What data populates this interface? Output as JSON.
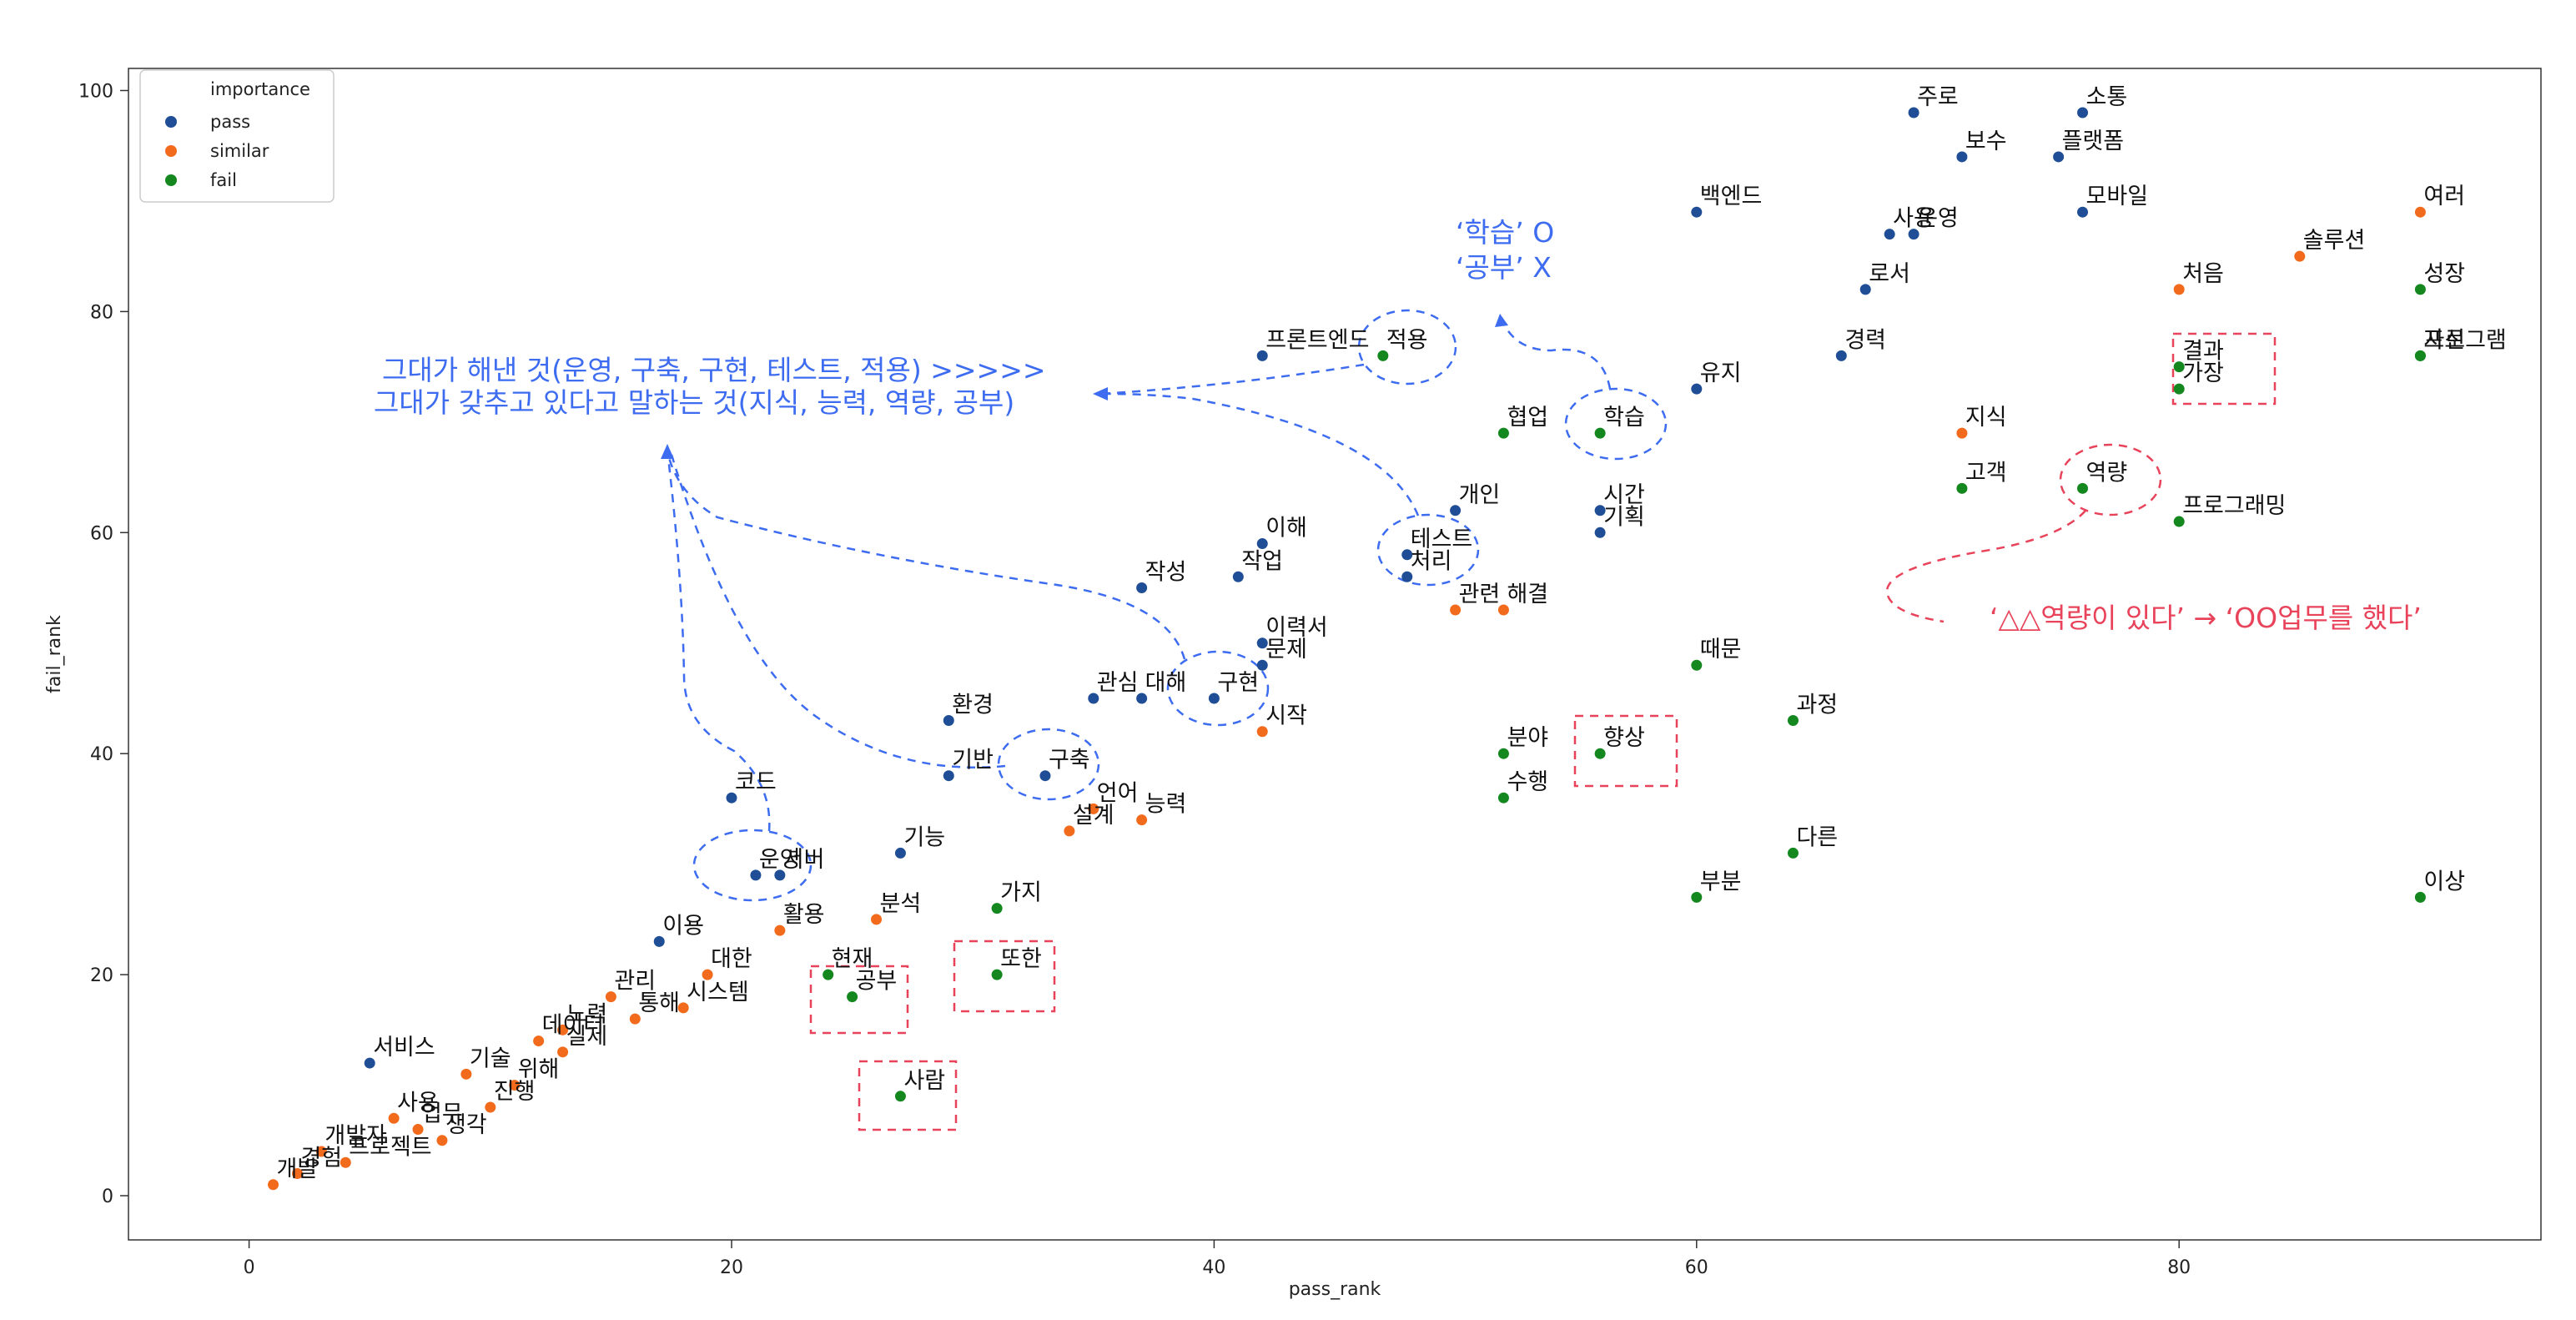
{
  "chart_data": {
    "type": "scatter",
    "xlabel": "pass_rank",
    "ylabel": "fail_rank",
    "xlim": [
      -5,
      95
    ],
    "ylim": [
      -4,
      102
    ],
    "x_ticks": [
      0,
      20,
      40,
      60,
      80
    ],
    "y_ticks": [
      0,
      20,
      40,
      60,
      80,
      100
    ],
    "legend": {
      "title": "importance",
      "placement": "top-left",
      "entries": [
        {
          "name": "pass",
          "color": "#1f4e96"
        },
        {
          "name": "similar",
          "color": "#f26b1d"
        },
        {
          "name": "fail",
          "color": "#14871f"
        }
      ]
    },
    "series": [
      {
        "name": "pass",
        "color": "#1f4e96",
        "points": [
          {
            "label": "주로",
            "x": 69,
            "y": 98
          },
          {
            "label": "소통",
            "x": 76,
            "y": 98
          },
          {
            "label": "보수",
            "x": 71,
            "y": 94
          },
          {
            "label": "플랫폼",
            "x": 75,
            "y": 94
          },
          {
            "label": "백엔드",
            "x": 60,
            "y": 89
          },
          {
            "label": "모바일",
            "x": 76,
            "y": 89
          },
          {
            "label": "사용",
            "x": 68,
            "y": 87
          },
          {
            "label": "운영",
            "x": 69,
            "y": 87
          },
          {
            "label": "로서",
            "x": 67,
            "y": 82
          },
          {
            "label": "경력",
            "x": 66,
            "y": 76
          },
          {
            "label": "유지",
            "x": 60,
            "y": 73
          },
          {
            "label": "프론트엔드",
            "x": 42,
            "y": 76
          },
          {
            "label": "개인",
            "x": 50,
            "y": 62
          },
          {
            "label": "시간",
            "x": 56,
            "y": 62
          },
          {
            "label": "기획",
            "x": 56,
            "y": 60
          },
          {
            "label": "이해",
            "x": 42,
            "y": 59
          },
          {
            "label": "작업",
            "x": 41,
            "y": 56
          },
          {
            "label": "작성",
            "x": 37,
            "y": 55
          },
          {
            "label": "처리",
            "x": 48,
            "y": 56
          },
          {
            "label": "테스트",
            "x": 48,
            "y": 58
          },
          {
            "label": "이력서",
            "x": 42,
            "y": 50
          },
          {
            "label": "문제",
            "x": 42,
            "y": 48
          },
          {
            "label": "관심",
            "x": 35,
            "y": 45
          },
          {
            "label": "대해",
            "x": 37,
            "y": 45
          },
          {
            "label": "구현",
            "x": 40,
            "y": 45
          },
          {
            "label": "환경",
            "x": 29,
            "y": 43
          },
          {
            "label": "기반",
            "x": 29,
            "y": 38
          },
          {
            "label": "구축",
            "x": 33,
            "y": 38
          },
          {
            "label": "코드",
            "x": 20,
            "y": 36
          },
          {
            "label": "기능",
            "x": 27,
            "y": 31
          },
          {
            "label": "운영",
            "x": 21,
            "y": 29
          },
          {
            "label": "서버",
            "x": 22,
            "y": 29
          },
          {
            "label": "이용",
            "x": 17,
            "y": 23
          },
          {
            "label": "서비스",
            "x": 5,
            "y": 12
          }
        ]
      },
      {
        "name": "similar",
        "color": "#f26b1d",
        "points": [
          {
            "label": "여러",
            "x": 90,
            "y": 89
          },
          {
            "label": "솔루션",
            "x": 85,
            "y": 85
          },
          {
            "label": "처음",
            "x": 80,
            "y": 82
          },
          {
            "label": "지식",
            "x": 71,
            "y": 69
          },
          {
            "label": "관련",
            "x": 50,
            "y": 53
          },
          {
            "label": "해결",
            "x": 52,
            "y": 53
          },
          {
            "label": "시작",
            "x": 42,
            "y": 42
          },
          {
            "label": "언어",
            "x": 35,
            "y": 35
          },
          {
            "label": "능력",
            "x": 37,
            "y": 34
          },
          {
            "label": "설계",
            "x": 34,
            "y": 33
          },
          {
            "label": "분석",
            "x": 26,
            "y": 25
          },
          {
            "label": "활용",
            "x": 22,
            "y": 24
          },
          {
            "label": "대한",
            "x": 19,
            "y": 20
          },
          {
            "label": "관리",
            "x": 15,
            "y": 18
          },
          {
            "label": "시스템",
            "x": 18,
            "y": 17
          },
          {
            "label": "통해",
            "x": 16,
            "y": 16
          },
          {
            "label": "노력",
            "x": 13,
            "y": 15
          },
          {
            "label": "데이터",
            "x": 12,
            "y": 14
          },
          {
            "label": "실제",
            "x": 13,
            "y": 13
          },
          {
            "label": "기술",
            "x": 9,
            "y": 11
          },
          {
            "label": "위해",
            "x": 11,
            "y": 10
          },
          {
            "label": "진행",
            "x": 10,
            "y": 8
          },
          {
            "label": "사용",
            "x": 6,
            "y": 7
          },
          {
            "label": "업무",
            "x": 7,
            "y": 6
          },
          {
            "label": "생각",
            "x": 8,
            "y": 5
          },
          {
            "label": "개발자",
            "x": 3,
            "y": 4
          },
          {
            "label": "프로젝트",
            "x": 4,
            "y": 3
          },
          {
            "label": "경험",
            "x": 2,
            "y": 2
          },
          {
            "label": "개발",
            "x": 1,
            "y": 1
          }
        ]
      },
      {
        "name": "fail",
        "color": "#14871f",
        "points": [
          {
            "label": "성장",
            "x": 90,
            "y": 82
          },
          {
            "label": "프로그램",
            "x": 90,
            "y": 76
          },
          {
            "label": "자신",
            "x": 90,
            "y": 76
          },
          {
            "label": "결과",
            "x": 80,
            "y": 75
          },
          {
            "label": "가장",
            "x": 80,
            "y": 73
          },
          {
            "label": "적용",
            "x": 47,
            "y": 76
          },
          {
            "label": "협업",
            "x": 52,
            "y": 69
          },
          {
            "label": "학습",
            "x": 56,
            "y": 69
          },
          {
            "label": "고객",
            "x": 71,
            "y": 64
          },
          {
            "label": "역량",
            "x": 76,
            "y": 64
          },
          {
            "label": "프로그래밍",
            "x": 80,
            "y": 61
          },
          {
            "label": "때문",
            "x": 60,
            "y": 48
          },
          {
            "label": "과정",
            "x": 64,
            "y": 43
          },
          {
            "label": "분야",
            "x": 52,
            "y": 40
          },
          {
            "label": "향상",
            "x": 56,
            "y": 40
          },
          {
            "label": "수행",
            "x": 52,
            "y": 36
          },
          {
            "label": "다른",
            "x": 64,
            "y": 31
          },
          {
            "label": "부분",
            "x": 60,
            "y": 27
          },
          {
            "label": "이상",
            "x": 90,
            "y": 27
          },
          {
            "label": "가지",
            "x": 31,
            "y": 26
          },
          {
            "label": "현재",
            "x": 24,
            "y": 20
          },
          {
            "label": "또한",
            "x": 31,
            "y": 20
          },
          {
            "label": "공부",
            "x": 25,
            "y": 18
          },
          {
            "label": "사람",
            "x": 27,
            "y": 9
          }
        ]
      }
    ],
    "annotations": [
      {
        "text": "‘학습’ O",
        "color": "#3d6cf0"
      },
      {
        "text": "‘공부’ X",
        "color": "#3d6cf0"
      },
      {
        "text": "그대가 해낸 것(운영, 구축, 구현, 테스트, 적용) >>>>>",
        "color": "#3d6cf0"
      },
      {
        "text": "그대가 갖추고 있다고 말하는 것(지식, 능력, 역량, 공부)",
        "color": "#3d6cf0"
      },
      {
        "text": "‘△△역량이 있다’ → ‘OO업무를 했다’",
        "color": "#e8435a"
      }
    ]
  }
}
